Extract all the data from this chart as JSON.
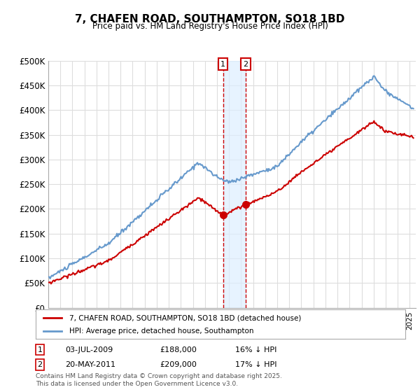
{
  "title": "7, CHAFEN ROAD, SOUTHAMPTON, SO18 1BD",
  "subtitle": "Price paid vs. HM Land Registry's House Price Index (HPI)",
  "ylabel_ticks": [
    "£0",
    "£50K",
    "£100K",
    "£150K",
    "£200K",
    "£250K",
    "£300K",
    "£350K",
    "£400K",
    "£450K",
    "£500K"
  ],
  "ytick_values": [
    0,
    50000,
    100000,
    150000,
    200000,
    250000,
    300000,
    350000,
    400000,
    450000,
    500000
  ],
  "ylim": [
    0,
    500000
  ],
  "xlim_start": 1995.0,
  "xlim_end": 2025.5,
  "sale1_date": 2009.5,
  "sale1_price": 188000,
  "sale1_label": "1",
  "sale1_text": "03-JUL-2009    £188,000    16% ↓ HPI",
  "sale2_date": 2011.38,
  "sale2_price": 209000,
  "sale2_label": "2",
  "sale2_text": "20-MAY-2011    £209,000    17% ↓ HPI",
  "line_color_price": "#cc0000",
  "line_color_hpi": "#6699cc",
  "shade_color": "#ddeeff",
  "grid_color": "#dddddd",
  "annotation_box_color": "#cc0000",
  "legend_label_price": "7, CHAFEN ROAD, SOUTHAMPTON, SO18 1BD (detached house)",
  "legend_label_hpi": "HPI: Average price, detached house, Southampton",
  "footer": "Contains HM Land Registry data © Crown copyright and database right 2025.\nThis data is licensed under the Open Government Licence v3.0.",
  "background_color": "#ffffff",
  "plot_background": "#ffffff"
}
